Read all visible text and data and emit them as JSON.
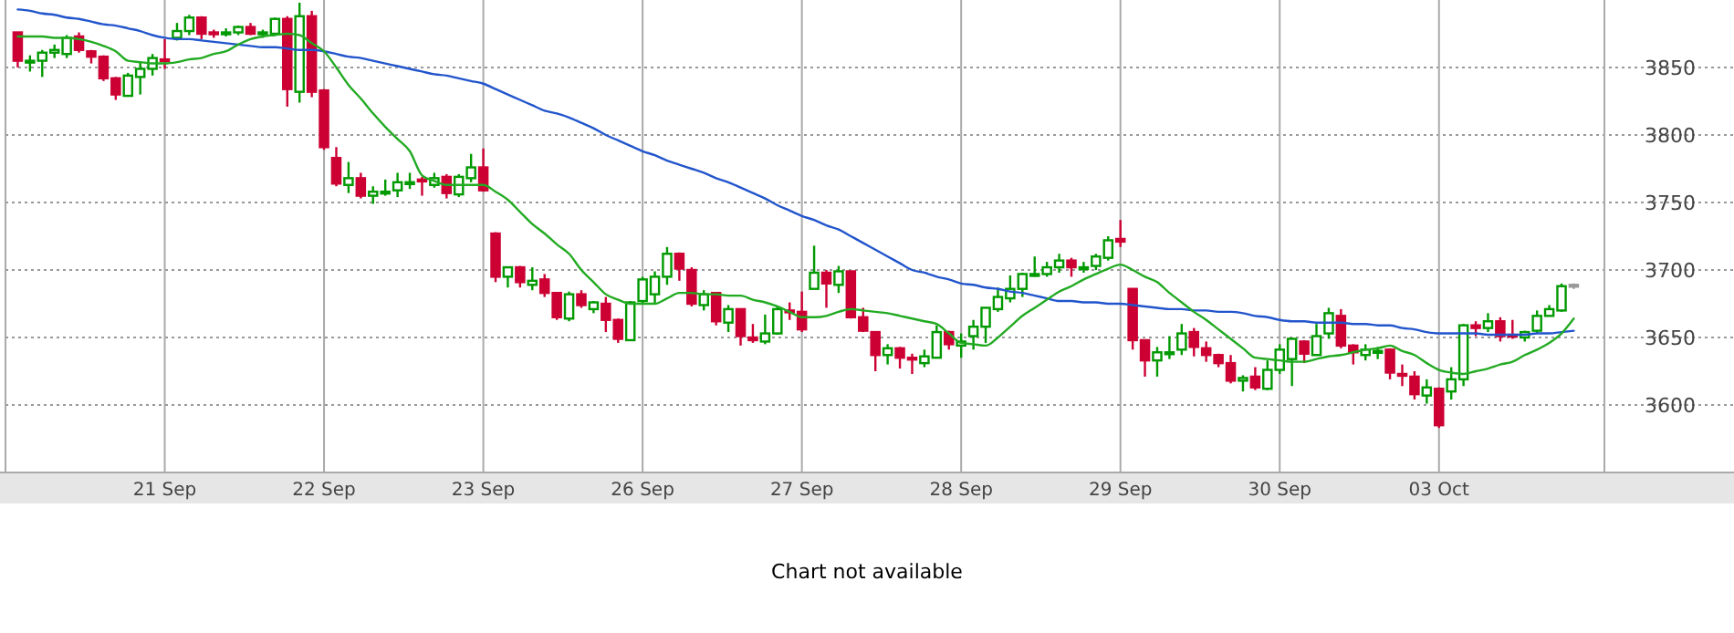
{
  "chart_data": {
    "type": "candlestick",
    "categories": [
      null,
      null,
      null,
      null,
      null,
      null,
      null,
      null,
      null,
      null,
      null,
      null,
      "21 Sep",
      null,
      null,
      null,
      null,
      null,
      null,
      null,
      null,
      null,
      null,
      null,
      null,
      "22 Sep",
      null,
      null,
      null,
      null,
      null,
      null,
      null,
      null,
      null,
      null,
      null,
      null,
      "23 Sep",
      null,
      null,
      null,
      null,
      null,
      null,
      null,
      null,
      null,
      null,
      null,
      null,
      "26 Sep",
      null,
      null,
      null,
      null,
      null,
      null,
      null,
      null,
      null,
      null,
      null,
      null,
      "27 Sep",
      null,
      null,
      null,
      null,
      null,
      null,
      null,
      null,
      null,
      null,
      null,
      null,
      "28 Sep",
      null,
      null,
      null,
      null,
      null,
      null,
      null,
      null,
      null,
      null,
      null,
      null,
      "29 Sep",
      null,
      null,
      null,
      null,
      null,
      null,
      null,
      null,
      null,
      null,
      null,
      null,
      "30 Sep",
      null,
      null,
      null,
      null,
      null,
      null,
      null,
      null,
      null,
      null,
      null,
      null,
      "03 Oct",
      null,
      null,
      null,
      null,
      null,
      null,
      null,
      null,
      null,
      null,
      null
    ],
    "ohlc": [
      [
        3876,
        3876,
        3850,
        3855
      ],
      [
        3854,
        3859,
        3847,
        3855
      ],
      [
        3855,
        3863,
        3843,
        3861
      ],
      [
        3861,
        3867,
        3857,
        3863
      ],
      [
        3860,
        3874,
        3857,
        3872
      ],
      [
        3873,
        3876,
        3861,
        3863
      ],
      [
        3862,
        3863,
        3853,
        3858
      ],
      [
        3858,
        3859,
        3840,
        3842
      ],
      [
        3842,
        3843,
        3826,
        3830
      ],
      [
        3829,
        3846,
        3829,
        3844
      ],
      [
        3843,
        3854,
        3830,
        3849
      ],
      [
        3849,
        3860,
        3844,
        3857
      ],
      [
        3856,
        3871,
        3849,
        3855
      ],
      [
        3872,
        3883,
        3870,
        3877
      ],
      [
        3877,
        3889,
        3874,
        3887
      ],
      [
        3887,
        3888,
        3871,
        3875
      ],
      [
        3876,
        3878,
        3872,
        3875
      ],
      [
        3875,
        3879,
        3873,
        3876
      ],
      [
        3876,
        3881,
        3874,
        3880
      ],
      [
        3880,
        3883,
        3874,
        3875
      ],
      [
        3875,
        3878,
        3872,
        3876
      ],
      [
        3875,
        3887,
        3874,
        3886
      ],
      [
        3886,
        3888,
        3821,
        3834
      ],
      [
        3832,
        3898,
        3824,
        3888
      ],
      [
        3888,
        3892,
        3828,
        3832
      ],
      [
        3833,
        3834,
        3789,
        3791
      ],
      [
        3783,
        3791,
        3762,
        3764
      ],
      [
        3763,
        3780,
        3757,
        3768
      ],
      [
        3768,
        3772,
        3753,
        3755
      ],
      [
        3755,
        3762,
        3749,
        3758
      ],
      [
        3757,
        3767,
        3755,
        3758
      ],
      [
        3759,
        3772,
        3754,
        3765
      ],
      [
        3764,
        3772,
        3760,
        3765
      ],
      [
        3767,
        3769,
        3755,
        3766
      ],
      [
        3763,
        3772,
        3761,
        3768
      ],
      [
        3769,
        3771,
        3753,
        3757
      ],
      [
        3756,
        3771,
        3754,
        3769
      ],
      [
        3768,
        3786,
        3765,
        3776
      ],
      [
        3776,
        3790,
        3758,
        3759
      ],
      [
        3727,
        3728,
        3691,
        3695
      ],
      [
        3695,
        3702,
        3687,
        3702
      ],
      [
        3702,
        3703,
        3687,
        3691
      ],
      [
        3689,
        3702,
        3685,
        3692
      ],
      [
        3693,
        3697,
        3680,
        3683
      ],
      [
        3683,
        3683,
        3663,
        3665
      ],
      [
        3664,
        3684,
        3662,
        3682
      ],
      [
        3682,
        3685,
        3672,
        3674
      ],
      [
        3671,
        3677,
        3668,
        3676
      ],
      [
        3675,
        3680,
        3654,
        3663
      ],
      [
        3663,
        3664,
        3646,
        3649
      ],
      [
        3648,
        3677,
        3648,
        3676
      ],
      [
        3677,
        3695,
        3675,
        3693
      ],
      [
        3682,
        3699,
        3675,
        3695
      ],
      [
        3695,
        3717,
        3689,
        3712
      ],
      [
        3712,
        3713,
        3692,
        3701
      ],
      [
        3700,
        3702,
        3673,
        3675
      ],
      [
        3674,
        3685,
        3670,
        3682
      ],
      [
        3683,
        3683,
        3659,
        3662
      ],
      [
        3661,
        3674,
        3654,
        3671
      ],
      [
        3671,
        3671,
        3644,
        3651
      ],
      [
        3650,
        3660,
        3646,
        3648
      ],
      [
        3647,
        3667,
        3645,
        3653
      ],
      [
        3653,
        3673,
        3652,
        3671
      ],
      [
        3670,
        3676,
        3663,
        3669
      ],
      [
        3669,
        3684,
        3654,
        3656
      ],
      [
        3686,
        3718,
        3686,
        3698
      ],
      [
        3698,
        3700,
        3672,
        3690
      ],
      [
        3689,
        3703,
        3683,
        3699
      ],
      [
        3699,
        3699,
        3664,
        3665
      ],
      [
        3665,
        3672,
        3654,
        3655
      ],
      [
        3654,
        3654,
        3625,
        3637
      ],
      [
        3637,
        3645,
        3630,
        3642
      ],
      [
        3642,
        3643,
        3627,
        3635
      ],
      [
        3635,
        3638,
        3623,
        3634
      ],
      [
        3631,
        3641,
        3628,
        3636
      ],
      [
        3635,
        3659,
        3635,
        3654
      ],
      [
        3654,
        3655,
        3641,
        3645
      ],
      [
        3644,
        3653,
        3635,
        3647
      ],
      [
        3651,
        3663,
        3641,
        3658
      ],
      [
        3658,
        3672,
        3646,
        3672
      ],
      [
        3671,
        3687,
        3669,
        3680
      ],
      [
        3679,
        3696,
        3676,
        3686
      ],
      [
        3686,
        3698,
        3680,
        3697
      ],
      [
        3696,
        3710,
        3695,
        3697
      ],
      [
        3697,
        3706,
        3695,
        3702
      ],
      [
        3702,
        3712,
        3698,
        3707
      ],
      [
        3707,
        3709,
        3695,
        3702
      ],
      [
        3701,
        3706,
        3698,
        3702
      ],
      [
        3703,
        3712,
        3700,
        3710
      ],
      [
        3709,
        3725,
        3707,
        3722
      ],
      [
        3723,
        3737,
        3717,
        3721
      ],
      [
        3686,
        3686,
        3641,
        3648
      ],
      [
        3648,
        3648,
        3621,
        3633
      ],
      [
        3633,
        3643,
        3621,
        3639
      ],
      [
        3638,
        3651,
        3634,
        3639
      ],
      [
        3641,
        3660,
        3637,
        3653
      ],
      [
        3654,
        3657,
        3636,
        3643
      ],
      [
        3642,
        3647,
        3632,
        3637
      ],
      [
        3637,
        3638,
        3628,
        3631
      ],
      [
        3631,
        3637,
        3616,
        3618
      ],
      [
        3618,
        3622,
        3610,
        3620
      ],
      [
        3621,
        3628,
        3611,
        3613
      ],
      [
        3612,
        3633,
        3611,
        3626
      ],
      [
        3626,
        3645,
        3623,
        3641
      ],
      [
        3634,
        3650,
        3614,
        3649
      ],
      [
        3647,
        3648,
        3631,
        3638
      ],
      [
        3637,
        3660,
        3637,
        3651
      ],
      [
        3653,
        3672,
        3649,
        3668
      ],
      [
        3666,
        3671,
        3642,
        3644
      ],
      [
        3644,
        3645,
        3630,
        3639
      ],
      [
        3637,
        3645,
        3633,
        3641
      ],
      [
        3639,
        3643,
        3634,
        3640
      ],
      [
        3641,
        3642,
        3619,
        3624
      ],
      [
        3623,
        3630,
        3614,
        3622
      ],
      [
        3621,
        3625,
        3604,
        3608
      ],
      [
        3607,
        3619,
        3601,
        3613
      ],
      [
        3612,
        3613,
        3583,
        3585
      ],
      [
        3610,
        3628,
        3604,
        3619
      ],
      [
        3619,
        3660,
        3614,
        3659
      ],
      [
        3659,
        3662,
        3651,
        3657
      ],
      [
        3657,
        3668,
        3654,
        3662
      ],
      [
        3662,
        3665,
        3647,
        3651
      ],
      [
        3652,
        3663,
        3649,
        3651
      ],
      [
        3650,
        3655,
        3647,
        3654
      ],
      [
        3655,
        3670,
        3653,
        3666
      ],
      [
        3666,
        3674,
        3666,
        3671
      ],
      [
        3670,
        3690,
        3669,
        3688
      ],
      [
        3688,
        3690,
        3686,
        3689
      ]
    ],
    "colors": [
      "#cc0033",
      "#009900",
      "#009900",
      "#009900",
      "#009900",
      "#cc0033",
      "#cc0033",
      "#cc0033",
      "#cc0033",
      "#009900",
      "#009900",
      "#009900",
      "#cc0033",
      "#009900",
      "#009900",
      "#cc0033",
      "#cc0033",
      "#009900",
      "#009900",
      "#cc0033",
      "#009900",
      "#009900",
      "#cc0033",
      "#009900",
      "#cc0033",
      "#cc0033",
      "#cc0033",
      "#009900",
      "#cc0033",
      "#009900",
      "#009900",
      "#009900",
      "#009900",
      "#cc0033",
      "#009900",
      "#cc0033",
      "#009900",
      "#009900",
      "#cc0033",
      "#cc0033",
      "#009900",
      "#cc0033",
      "#009900",
      "#cc0033",
      "#cc0033",
      "#009900",
      "#cc0033",
      "#009900",
      "#cc0033",
      "#cc0033",
      "#009900",
      "#009900",
      "#009900",
      "#009900",
      "#cc0033",
      "#cc0033",
      "#009900",
      "#cc0033",
      "#009900",
      "#cc0033",
      "#cc0033",
      "#009900",
      "#009900",
      "#cc0033",
      "#cc0033",
      "#009900",
      "#cc0033",
      "#009900",
      "#cc0033",
      "#cc0033",
      "#cc0033",
      "#009900",
      "#cc0033",
      "#cc0033",
      "#009900",
      "#009900",
      "#cc0033",
      "#009900",
      "#009900",
      "#009900",
      "#009900",
      "#009900",
      "#009900",
      "#009900",
      "#009900",
      "#009900",
      "#cc0033",
      "#009900",
      "#009900",
      "#009900",
      "#cc0033",
      "#cc0033",
      "#cc0033",
      "#009900",
      "#009900",
      "#009900",
      "#cc0033",
      "#cc0033",
      "#cc0033",
      "#cc0033",
      "#009900",
      "#cc0033",
      "#009900",
      "#009900",
      "#009900",
      "#cc0033",
      "#009900",
      "#009900",
      "#cc0033",
      "#cc0033",
      "#009900",
      "#009900",
      "#cc0033",
      "#cc0033",
      "#cc0033",
      "#009900",
      "#cc0033",
      "#009900",
      "#009900",
      "#cc0033",
      "#009900",
      "#cc0033",
      "#cc0033",
      "#009900",
      "#009900",
      "#009900",
      "#009900",
      "#999999"
    ],
    "series": [
      {
        "type": "line",
        "color": "#2255cc",
        "values": [
          3893,
          3892,
          3890,
          3889,
          3887,
          3886,
          3884,
          3882,
          3881,
          3879,
          3877,
          3874,
          3872,
          3871,
          3871,
          3870,
          3869,
          3868,
          3867,
          3866,
          3865,
          3865,
          3864,
          3863,
          3863,
          3862,
          3860,
          3858,
          3857,
          3855,
          3853,
          3851,
          3849,
          3847,
          3845,
          3844,
          3842,
          3840,
          3838,
          3834,
          3830,
          3826,
          3822,
          3818,
          3816,
          3813,
          3809,
          3805,
          3800,
          3796,
          3792,
          3788,
          3785,
          3781,
          3778,
          3775,
          3772,
          3768,
          3765,
          3761,
          3757,
          3753,
          3748,
          3744,
          3740,
          3737,
          3733,
          3730,
          3725,
          3720,
          3715,
          3710,
          3705,
          3700,
          3698,
          3695,
          3693,
          3690,
          3689,
          3687,
          3686,
          3684,
          3683,
          3681,
          3679,
          3677,
          3677,
          3676,
          3676,
          3675,
          3675,
          3674,
          3673,
          3672,
          3671,
          3671,
          3670,
          3670,
          3669,
          3669,
          3668,
          3666,
          3665,
          3663,
          3662,
          3662,
          3661,
          3661,
          3661,
          3660,
          3660,
          3659,
          3659,
          3657,
          3656,
          3654,
          3653,
          3653,
          3653,
          3653,
          3652,
          3652,
          3652,
          3652,
          3653,
          3653,
          3654,
          3655
        ]
      },
      {
        "type": "line",
        "color": "#22aa22",
        "values": [
          3873,
          3873,
          3873,
          3872,
          3872,
          3871,
          3869,
          3866,
          3862,
          3855,
          3854,
          3853,
          3853,
          3854,
          3856,
          3857,
          3860,
          3862,
          3867,
          3871,
          3873,
          3874,
          3875,
          3874,
          3868,
          3862,
          3850,
          3837,
          3827,
          3816,
          3806,
          3797,
          3788,
          3770,
          3766,
          3763,
          3763,
          3763,
          3763,
          3758,
          3752,
          3743,
          3734,
          3727,
          3719,
          3712,
          3700,
          3691,
          3682,
          3678,
          3675,
          3675,
          3675,
          3679,
          3683,
          3683,
          3682,
          3682,
          3681,
          3681,
          3678,
          3676,
          3673,
          3669,
          3665,
          3665,
          3666,
          3669,
          3671,
          3670,
          3669,
          3668,
          3666,
          3664,
          3662,
          3660,
          3653,
          3646,
          3645,
          3644,
          3650,
          3658,
          3666,
          3672,
          3678,
          3684,
          3688,
          3693,
          3697,
          3701,
          3704,
          3700,
          3695,
          3691,
          3683,
          3676,
          3669,
          3663,
          3656,
          3649,
          3642,
          3635,
          3634,
          3633,
          3632,
          3632,
          3634,
          3636,
          3637,
          3639,
          3641,
          3642,
          3644,
          3640,
          3637,
          3631,
          3626,
          3624,
          3623,
          3625,
          3627,
          3630,
          3632,
          3637,
          3641,
          3646,
          3653,
          3664
        ]
      }
    ],
    "ylim": [
      3550,
      3900
    ],
    "yticks": [
      3600,
      3650,
      3700,
      3750,
      3800,
      3850
    ],
    "grid": true,
    "annotations": [
      "Chart not available"
    ]
  }
}
